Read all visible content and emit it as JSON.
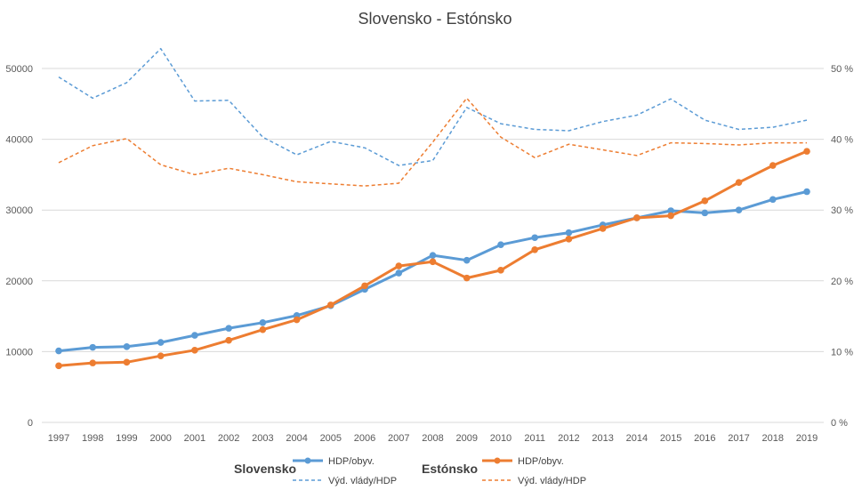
{
  "chart_data": {
    "type": "line",
    "title": "Slovensko - Estónsko",
    "x": [
      "1997",
      "1998",
      "1999",
      "2000",
      "2001",
      "2002",
      "2003",
      "2004",
      "2005",
      "2006",
      "2007",
      "2008",
      "2009",
      "2010",
      "2011",
      "2012",
      "2013",
      "2014",
      "2015",
      "2016",
      "2017",
      "2018",
      "2019"
    ],
    "y_left": {
      "ticks": [
        "0",
        "10000",
        "20000",
        "30000",
        "40000",
        "50000"
      ],
      "ylim": [
        0,
        50000
      ]
    },
    "y_right": {
      "ticks": [
        "0 %",
        "10 %",
        "20 %",
        "30 %",
        "40 %",
        "50 %"
      ],
      "ylim": [
        0,
        50
      ]
    },
    "grid": true,
    "legend_position": "bottom",
    "colors": {
      "slovensko": "#5b9bd5",
      "estonsko": "#ed7d31",
      "grid": "#d9d9d9",
      "text": "#595959"
    },
    "legend": {
      "slovensko_label": "Slovensko",
      "estonsko_label": "Estónsko",
      "hdp_label": "HDP/obyv.",
      "vyd_label": "Výd. vlády/HDP"
    },
    "series": [
      {
        "name": "Slovensko HDP/obyv.",
        "group": "slovensko",
        "axis": "left",
        "style": "solid",
        "values": [
          10100,
          10600,
          10700,
          11300,
          12300,
          13300,
          14100,
          15100,
          16500,
          18800,
          21100,
          23600,
          22900,
          25100,
          26100,
          26800,
          27900,
          28900,
          29900,
          29600,
          30000,
          31500,
          32600
        ]
      },
      {
        "name": "Slovensko Výd. vlády/HDP",
        "group": "slovensko",
        "axis": "right",
        "style": "dashed",
        "values": [
          48.8,
          45.8,
          48.0,
          52.8,
          45.4,
          45.5,
          40.3,
          37.8,
          39.7,
          38.8,
          36.3,
          37.0,
          44.5,
          42.2,
          41.4,
          41.2,
          42.5,
          43.4,
          45.7,
          42.7,
          41.4,
          41.7,
          42.7
        ]
      },
      {
        "name": "Estónsko HDP/obyv.",
        "group": "estonsko",
        "axis": "left",
        "style": "solid",
        "values": [
          8000,
          8400,
          8500,
          9400,
          10200,
          11600,
          13100,
          14500,
          16600,
          19300,
          22100,
          22700,
          20400,
          21500,
          24400,
          25900,
          27400,
          28900,
          29200,
          31300,
          33900,
          36300,
          38300
        ]
      },
      {
        "name": "Estónsko Výd. vlády/HDP",
        "group": "estonsko",
        "axis": "right",
        "style": "dashed",
        "values": [
          36.7,
          39.1,
          40.1,
          36.4,
          35.0,
          35.9,
          35.0,
          34.0,
          33.7,
          33.4,
          33.8,
          39.6,
          45.8,
          40.3,
          37.4,
          39.3,
          38.5,
          37.7,
          39.5,
          39.4,
          39.2,
          39.5,
          39.5
        ]
      }
    ]
  }
}
